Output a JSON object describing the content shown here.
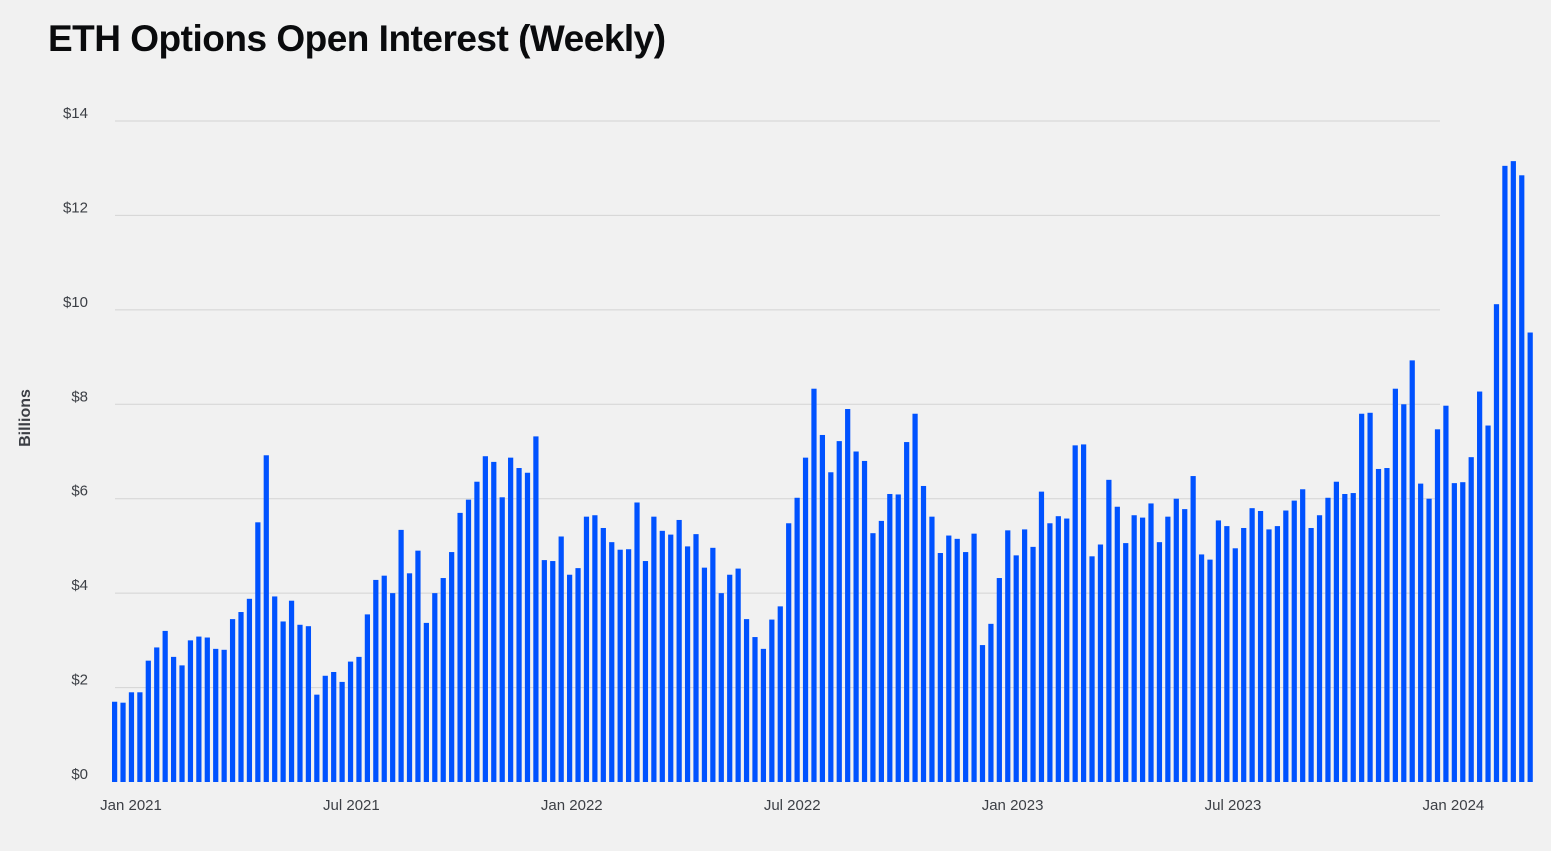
{
  "chart_data": {
    "type": "bar",
    "title": "ETH Options Open Interest (Weekly)",
    "xlabel": "",
    "ylabel": "Billions",
    "ylim": [
      0,
      14
    ],
    "yticks": [
      "$0",
      "$2",
      "$4",
      "$6",
      "$8",
      "$10",
      "$12",
      "$14"
    ],
    "xticks": [
      "Jan 2021",
      "Jul 2021",
      "Jan 2022",
      "Jul 2022",
      "Jan 2023",
      "Jul 2023",
      "Jan 2024"
    ],
    "grid": true,
    "legend": "none",
    "bar_color": "#0052ff",
    "series": [
      {
        "values": [
          1.7,
          1.68,
          1.9,
          1.9,
          2.57,
          2.85,
          3.2,
          2.65,
          2.47,
          3.0,
          3.08,
          3.06,
          2.82,
          2.8,
          3.45,
          3.6,
          3.88,
          5.5,
          6.92,
          3.93,
          3.4,
          3.84,
          3.33,
          3.3,
          1.85,
          2.25,
          2.33,
          2.12,
          2.55,
          2.65,
          3.55,
          4.28,
          4.37,
          4.0,
          5.34,
          4.42,
          4.9,
          3.37,
          4.0,
          4.32,
          4.87,
          5.7,
          5.98,
          6.36,
          6.9,
          6.78,
          6.03,
          6.87,
          6.65,
          6.55,
          7.32,
          4.7,
          4.68,
          5.2,
          4.39,
          4.53,
          5.62,
          5.65,
          5.38,
          5.08,
          4.92,
          4.93,
          5.92,
          4.68,
          5.62,
          5.32,
          5.24,
          5.55,
          4.99,
          5.25,
          4.54,
          4.96,
          4.0,
          4.39,
          4.52,
          3.45,
          3.07,
          2.82,
          3.44,
          3.72,
          5.48,
          6.02,
          6.87,
          8.33,
          7.35,
          6.56,
          7.22,
          7.9,
          7.0,
          6.8,
          5.27,
          5.53,
          6.1,
          6.09,
          7.2,
          7.8,
          6.27,
          5.62,
          4.85,
          5.22,
          5.15,
          4.87,
          5.26,
          2.9,
          3.35,
          4.32,
          5.33,
          4.8,
          5.35,
          4.98,
          6.15,
          5.48,
          5.63,
          5.58,
          7.13,
          7.15,
          4.78,
          5.03,
          6.4,
          5.83,
          5.06,
          5.65,
          5.6,
          5.9,
          5.08,
          5.62,
          6.0,
          5.78,
          6.48,
          4.82,
          4.71,
          5.54,
          5.42,
          4.95,
          5.38,
          5.8,
          5.74,
          5.35,
          5.42,
          5.75,
          5.96,
          6.2,
          5.38,
          5.65,
          6.02,
          6.36,
          6.1,
          6.12,
          7.8,
          7.82,
          6.63,
          6.65,
          8.33,
          8.0,
          8.93,
          6.32,
          6.0,
          7.47,
          7.97,
          6.33,
          6.35,
          6.88,
          8.27,
          7.55,
          10.12,
          13.05,
          13.15,
          12.85,
          9.52
        ]
      }
    ]
  }
}
